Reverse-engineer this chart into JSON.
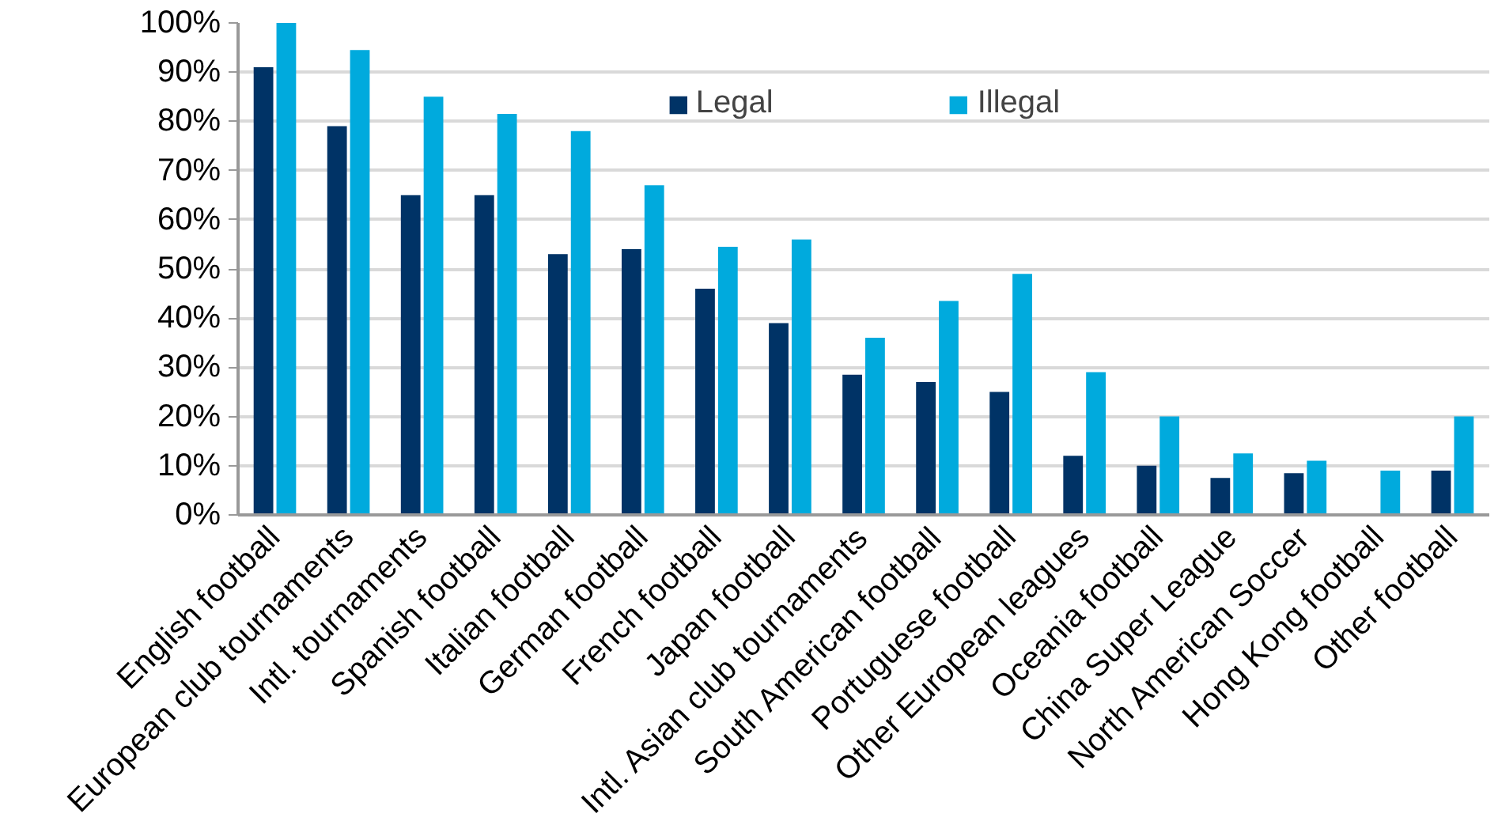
{
  "chart_data": {
    "type": "bar",
    "categories": [
      "English football",
      "European club tournaments",
      "Intl. tournaments",
      "Spanish football",
      "Italian football",
      "German football",
      "French football",
      "Japan football",
      "Intl. Asian club tournaments",
      "South American football",
      "Portuguese football",
      "Other European leagues",
      "Oceania football",
      "China Super League",
      "North American Soccer",
      "Hong Kong football",
      "Other football"
    ],
    "series": [
      {
        "name": "Legal",
        "color": "#003366",
        "values": [
          91,
          79,
          65,
          65,
          53,
          54,
          46,
          39,
          28.5,
          27,
          25,
          12,
          10,
          7.5,
          8.5,
          null,
          9
        ]
      },
      {
        "name": "Illegal",
        "color": "#00aadd",
        "values": [
          100,
          94.5,
          85,
          81.5,
          78,
          67,
          54.5,
          56,
          36,
          43.5,
          49,
          29,
          20,
          12.5,
          11,
          9,
          20
        ]
      }
    ],
    "ylim": [
      0,
      100
    ],
    "yticks": [
      {
        "value": 0,
        "label": "0%"
      },
      {
        "value": 10,
        "label": "10%"
      },
      {
        "value": 20,
        "label": "20%"
      },
      {
        "value": 30,
        "label": "30%"
      },
      {
        "value": 40,
        "label": "40%"
      },
      {
        "value": 50,
        "label": "50%"
      },
      {
        "value": 60,
        "label": "60%"
      },
      {
        "value": 70,
        "label": "70%"
      },
      {
        "value": 80,
        "label": "80%"
      },
      {
        "value": 90,
        "label": "90%"
      },
      {
        "value": 100,
        "label": "100%"
      }
    ],
    "grid": "y",
    "legend": "top"
  }
}
